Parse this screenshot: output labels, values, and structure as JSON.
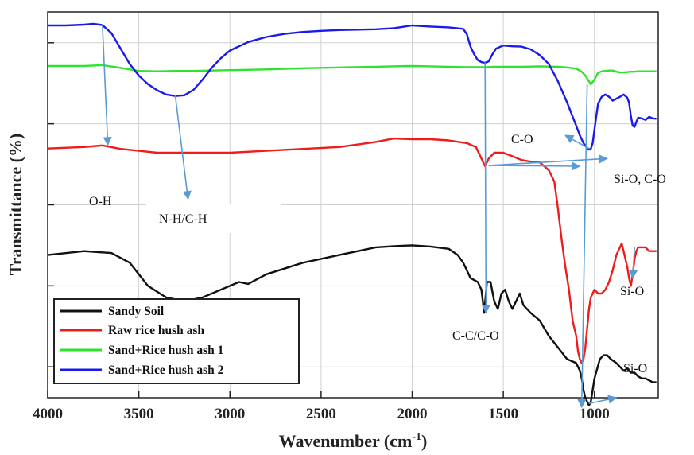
{
  "chart_data": {
    "type": "line",
    "xlabel": "Wavenumber (cm",
    "xlabel_sup": "-1",
    "xlabel_close": ")",
    "ylabel": "Transmittance (%)",
    "xlim": [
      4000,
      650
    ],
    "x_reversed": true,
    "y_unit": "arbitrary (offset spectra)",
    "ylim": [
      0,
      100
    ],
    "x_ticks": [
      4000,
      3500,
      3000,
      2500,
      2000,
      1500,
      1000
    ],
    "x_tick_labels": [
      "4000",
      "3500",
      "3000",
      "2500",
      "2000",
      "1500",
      "1000"
    ],
    "y_ticks": [
      92,
      71,
      50,
      29,
      8
    ],
    "grid": true,
    "legend_position": "bottom-left",
    "series": [
      {
        "name": "Sandy Soil",
        "color": "#111111",
        "x": [
          4000,
          3800,
          3650,
          3550,
          3450,
          3350,
          3250,
          3150,
          3050,
          2950,
          2900,
          2800,
          2600,
          2400,
          2200,
          2100,
          2000,
          1900,
          1800,
          1750,
          1720,
          1700,
          1680,
          1660,
          1640,
          1620,
          1605,
          1590,
          1570,
          1550,
          1530,
          1510,
          1490,
          1470,
          1450,
          1430,
          1410,
          1390,
          1370,
          1350,
          1300,
          1250,
          1200,
          1150,
          1100,
          1080,
          1070,
          1060,
          1050,
          1040,
          1030,
          1020,
          1000,
          970,
          950,
          930,
          910,
          880,
          860,
          840,
          820,
          800,
          780,
          760,
          740,
          720,
          700,
          680,
          660
        ],
        "y": [
          37,
          38,
          37.5,
          35,
          29,
          26,
          25,
          26,
          28,
          30,
          29.5,
          32,
          35,
          37,
          39,
          39.3,
          39.5,
          39.2,
          38.6,
          37,
          35,
          33,
          31,
          30.5,
          30,
          28,
          22,
          30,
          30,
          25,
          23,
          27,
          28,
          25,
          23,
          25,
          27,
          24,
          23,
          22,
          20,
          16,
          13,
          10,
          9,
          7,
          5,
          2,
          0,
          -1,
          -2,
          -1,
          5,
          10,
          11,
          11,
          10,
          9,
          8,
          7,
          7.5,
          6.5,
          6.5,
          5.5,
          5,
          5,
          4.5,
          4,
          4
        ]
      },
      {
        "name": "Raw rice hush ash",
        "color": "#ee1c1c",
        "x": [
          4000,
          3800,
          3700,
          3600,
          3500,
          3400,
          3300,
          3200,
          3000,
          2800,
          2600,
          2400,
          2200,
          2100,
          2000,
          1900,
          1800,
          1700,
          1650,
          1620,
          1600,
          1580,
          1550,
          1500,
          1450,
          1400,
          1350,
          1300,
          1250,
          1220,
          1200,
          1180,
          1160,
          1140,
          1120,
          1100,
          1090,
          1080,
          1070,
          1060,
          1050,
          1040,
          1030,
          1020,
          1000,
          980,
          960,
          940,
          920,
          900,
          880,
          860,
          850,
          840,
          830,
          820,
          810,
          800,
          790,
          780,
          770,
          760,
          740,
          720,
          700,
          680,
          660
        ],
        "y": [
          64.6,
          65,
          65.4,
          64.5,
          64,
          63.5,
          63.5,
          63.5,
          63.5,
          64,
          64.5,
          65,
          66.3,
          67.2,
          67,
          67,
          66.7,
          66,
          65,
          62,
          60,
          62,
          63.5,
          63.5,
          62.6,
          61.6,
          61.2,
          61,
          59,
          56,
          49,
          41,
          34,
          28,
          20,
          16,
          12,
          10,
          9,
          10,
          13,
          18,
          23,
          26,
          28,
          27,
          27,
          28,
          30,
          33,
          37,
          39,
          40,
          38,
          36,
          34,
          31,
          29,
          32,
          36,
          38,
          39,
          39,
          39,
          38,
          38,
          38
        ]
      },
      {
        "name": "Sand+Rice hush ash 1",
        "color": "#2ee32e",
        "x": [
          4000,
          3800,
          3700,
          3600,
          3500,
          3400,
          3300,
          3200,
          3100,
          3000,
          2800,
          2600,
          2400,
          2200,
          2000,
          1800,
          1700,
          1650,
          1600,
          1550,
          1500,
          1400,
          1300,
          1200,
          1150,
          1100,
          1070,
          1050,
          1030,
          1020,
          1000,
          980,
          960,
          940,
          920,
          900,
          880,
          860,
          840,
          820,
          800,
          780,
          760,
          740,
          720,
          700,
          680,
          660
        ],
        "y": [
          86,
          86,
          86.2,
          85.5,
          84.7,
          84.6,
          84.7,
          84.7,
          84.8,
          84.9,
          85.1,
          85.4,
          85.6,
          85.8,
          86,
          85.8,
          85.7,
          85.7,
          85.7,
          85.8,
          85.8,
          85.8,
          85.9,
          85.8,
          85.6,
          85.3,
          84.5,
          83.5,
          82,
          81.2,
          82.5,
          84.2,
          84.6,
          84.7,
          84.8,
          84.8,
          84.5,
          84.3,
          84.3,
          84.4,
          84.5,
          84.5,
          84.6,
          84.6,
          84.6,
          84.6,
          84.6,
          84.6
        ]
      },
      {
        "name": "Sand+Rice hush ash 2",
        "color": "#1a1aee",
        "x": [
          4000,
          3900,
          3800,
          3750,
          3700,
          3650,
          3600,
          3550,
          3500,
          3450,
          3400,
          3350,
          3300,
          3250,
          3200,
          3150,
          3100,
          3050,
          3000,
          2900,
          2800,
          2700,
          2600,
          2500,
          2400,
          2300,
          2200,
          2100,
          2000,
          1900,
          1800,
          1720,
          1700,
          1680,
          1660,
          1640,
          1620,
          1600,
          1580,
          1560,
          1540,
          1500,
          1450,
          1400,
          1350,
          1300,
          1250,
          1200,
          1150,
          1100,
          1080,
          1060,
          1050,
          1040,
          1030,
          1020,
          1010,
          1000,
          990,
          980,
          960,
          940,
          920,
          900,
          880,
          860,
          840,
          820,
          810,
          800,
          790,
          780,
          770,
          760,
          740,
          720,
          700,
          680,
          660
        ],
        "y": [
          96.5,
          96.5,
          96.7,
          96.9,
          96.6,
          94.5,
          90.5,
          86.5,
          83.5,
          81.3,
          79.7,
          78.6,
          78.2,
          78.4,
          79.8,
          82.5,
          85.5,
          88,
          90,
          92.2,
          93.5,
          94.3,
          94.8,
          95.1,
          95.3,
          95.4,
          95.5,
          95.8,
          96.5,
          96.2,
          96,
          95.6,
          94.2,
          91,
          89,
          87.5,
          87,
          86.8,
          87.2,
          89,
          90.5,
          91.3,
          91.1,
          91,
          90.3,
          88.8,
          86.5,
          82,
          76.5,
          70.5,
          68,
          66,
          65.3,
          64.8,
          64.3,
          64.5,
          66,
          69.5,
          73,
          76.2,
          78,
          78.6,
          78,
          77,
          77.5,
          78,
          78.6,
          77.8,
          76.5,
          73,
          70.5,
          70.2,
          71.5,
          72.6,
          72.4,
          72,
          72.8,
          72.4,
          72.3
        ]
      }
    ],
    "annotations": [
      {
        "text": "O-H"
      },
      {
        "text": "N-H/C-H"
      },
      {
        "text": "C-O"
      },
      {
        "text": "Si-O, C-O"
      },
      {
        "text": "Si-O"
      },
      {
        "text": "C-C/C-O"
      },
      {
        "text": "Si-O"
      }
    ],
    "colors": {
      "arrow": "#5b9bd5",
      "grid": "#d0d0d0",
      "axis": "#222222",
      "legend_border": "#222222"
    }
  }
}
